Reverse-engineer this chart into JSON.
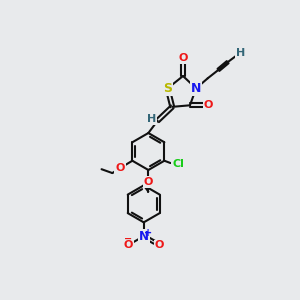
{
  "bg_color": "#e8eaec",
  "colors": {
    "S": "#b8b800",
    "N": "#1818ee",
    "O": "#ee1818",
    "Cl": "#18cc18",
    "H": "#336677",
    "C": "#111111",
    "bond": "#111111"
  },
  "font_size": 8.0,
  "fig_w": 3.0,
  "fig_h": 3.0,
  "dpi": 100
}
